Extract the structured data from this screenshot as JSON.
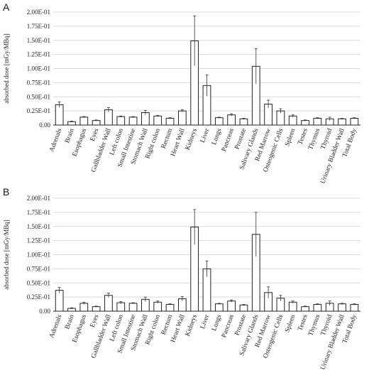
{
  "panels": [
    {
      "label": "A"
    },
    {
      "label": "B"
    }
  ],
  "chart_data": [
    {
      "type": "bar",
      "panel": "A",
      "ylabel": "absorbed dose [mGy/MBq]",
      "ylim": [
        0,
        0.2
      ],
      "yticks": [
        "0.00",
        "0.25E-01",
        "0.50E-01",
        "0.75E-01",
        "1.00E-01",
        "1.25E-01",
        "1.50E-01",
        "1.75E-01",
        "2.00E-01"
      ],
      "grid": true,
      "categories": [
        "Adrenals",
        "Brain",
        "Esophagus",
        "Eyes",
        "Gallbladder Wall",
        "Left colon",
        "Small Intestine",
        "Stomach Wall",
        "Right colon",
        "Rectum",
        "Heart Wall",
        "Kidneys",
        "Liver",
        "Lungs",
        "Pancreas",
        "Prostate",
        "Salivary Glands",
        "Red Marrow",
        "Osteogenic Cells",
        "Spleen",
        "Testes",
        "Thymus",
        "Thyroid",
        "Urinary Bladder Wall",
        "Total Body"
      ],
      "values": [
        0.036,
        0.006,
        0.014,
        0.008,
        0.027,
        0.015,
        0.014,
        0.022,
        0.016,
        0.012,
        0.025,
        0.149,
        0.07,
        0.013,
        0.018,
        0.011,
        0.104,
        0.037,
        0.025,
        0.016,
        0.008,
        0.012,
        0.011,
        0.011,
        0.012
      ],
      "errors": [
        0.005,
        0.001,
        0.001,
        0.001,
        0.004,
        0.001,
        0.001,
        0.004,
        0.001,
        0.001,
        0.002,
        0.044,
        0.019,
        0.001,
        0.002,
        0.001,
        0.031,
        0.007,
        0.004,
        0.002,
        0.001,
        0.001,
        0.003,
        0.001,
        0.001
      ]
    },
    {
      "type": "bar",
      "panel": "B",
      "ylabel": "absorbed dose [mGy/MBq]",
      "ylim": [
        0,
        0.2
      ],
      "yticks": [
        "0.00",
        "0.25E-01",
        "0.50E-01",
        "0.75E-01",
        "1.00E-01",
        "1.25E-01",
        "1.50E-01",
        "1.75E-01",
        "2.00E-01"
      ],
      "grid": true,
      "categories": [
        "Adrenals",
        "Brain",
        "Esophagus",
        "Eyes",
        "Gallbladder Wall",
        "Left colon",
        "Small Intestine",
        "Stomach Wall",
        "Right colon",
        "Rectum",
        "Heart Wall",
        "Kidneys",
        "Liver",
        "Lungs",
        "Pancreas",
        "Prostate",
        "Salivary Glands",
        "Red Marrow",
        "Osteogenic Cells",
        "Spleen",
        "Testes",
        "Thymus",
        "Thyroid",
        "Urinary Bladder Wall",
        "Total Body"
      ],
      "values": [
        0.037,
        0.005,
        0.014,
        0.008,
        0.028,
        0.015,
        0.014,
        0.021,
        0.016,
        0.012,
        0.022,
        0.149,
        0.075,
        0.013,
        0.018,
        0.011,
        0.136,
        0.033,
        0.023,
        0.016,
        0.008,
        0.012,
        0.014,
        0.013,
        0.012
      ],
      "errors": [
        0.005,
        0.001,
        0.002,
        0.001,
        0.004,
        0.002,
        0.001,
        0.004,
        0.002,
        0.001,
        0.004,
        0.031,
        0.014,
        0.001,
        0.002,
        0.001,
        0.039,
        0.01,
        0.005,
        0.002,
        0.001,
        0.001,
        0.004,
        0.001,
        0.001
      ]
    }
  ]
}
